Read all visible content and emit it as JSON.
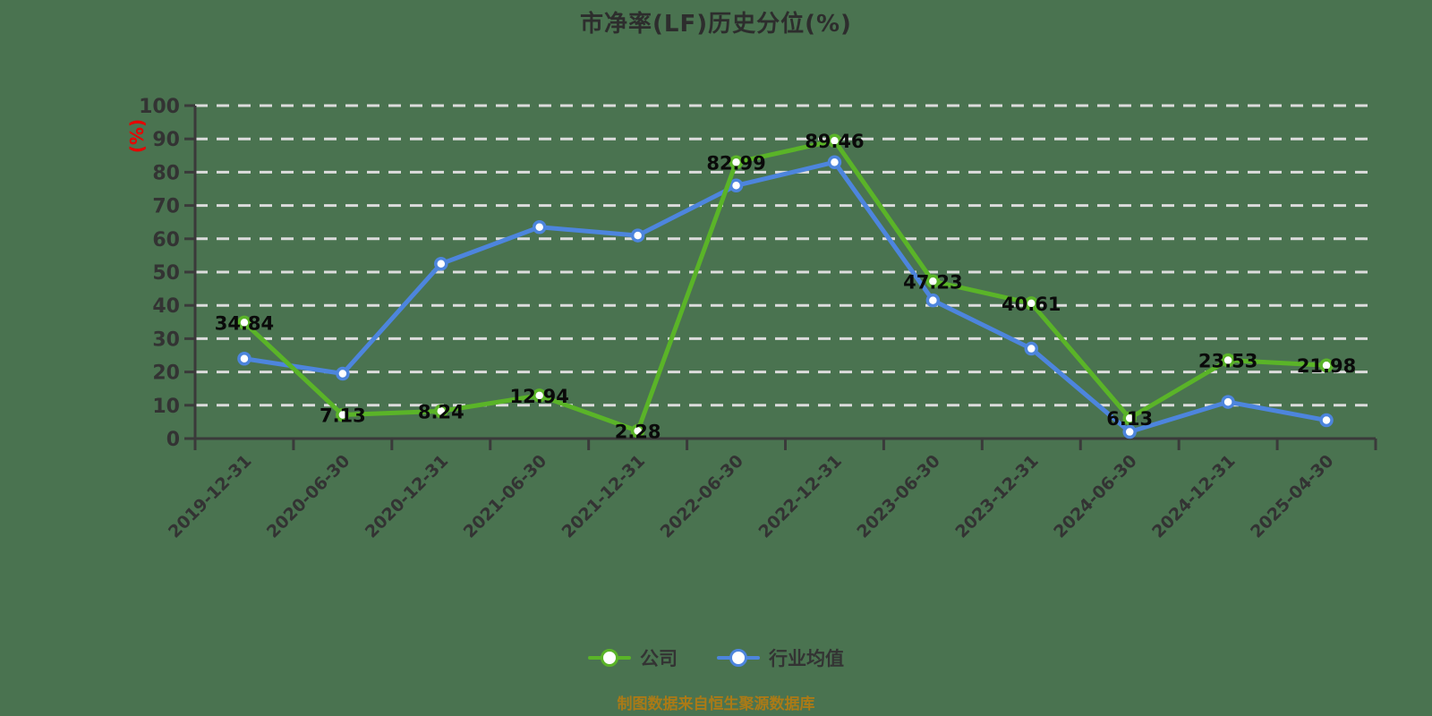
{
  "title": "市净率(LF)历史分位(%)",
  "footer_note": "制图数据来自恒生聚源数据库",
  "y_axis": {
    "unit_label": "(%)",
    "unit_label_color": "#e80000",
    "min": 0,
    "max": 100,
    "tick_step": 10
  },
  "legend": {
    "company_label": "公司",
    "industry_label": "行业均值",
    "position": "bottom"
  },
  "colors": {
    "background": "#4a7350",
    "company_line": "#5ab428",
    "industry_line": "#4d85dd",
    "grid_line": "#dcdcdc",
    "axis_line": "#3a3a3a",
    "tick_text": "#333333",
    "data_label_text": "#0a0a0a",
    "marker_fill": "#ffffff",
    "title_text": "#2d2d2d",
    "footer_text": "#ab7a16"
  },
  "chart_data": {
    "type": "line",
    "title": "市净率(LF)历史分位(%)",
    "xlabel": "",
    "ylabel": "(%)",
    "ylim": [
      0,
      100
    ],
    "ytick_step": 10,
    "grid": "horizontal-dashed",
    "legend_position": "bottom",
    "categories": [
      "2019-12-31",
      "2020-06-30",
      "2020-12-31",
      "2021-06-30",
      "2021-12-31",
      "2022-06-30",
      "2022-12-31",
      "2023-06-30",
      "2023-12-31",
      "2024-06-30",
      "2024-12-31",
      "2025-04-30"
    ],
    "series": [
      {
        "name": "公司",
        "color": "#5ab428",
        "show_point_labels": true,
        "values": [
          34.84,
          7.13,
          8.24,
          12.94,
          2.28,
          82.99,
          89.46,
          47.23,
          40.61,
          6.13,
          23.53,
          21.98
        ]
      },
      {
        "name": "行业均值",
        "color": "#4d85dd",
        "show_point_labels": false,
        "values_estimated": true,
        "values": [
          24,
          19.5,
          52.5,
          63.5,
          61,
          76,
          83,
          41.5,
          27,
          2,
          11,
          5.5
        ]
      }
    ]
  }
}
